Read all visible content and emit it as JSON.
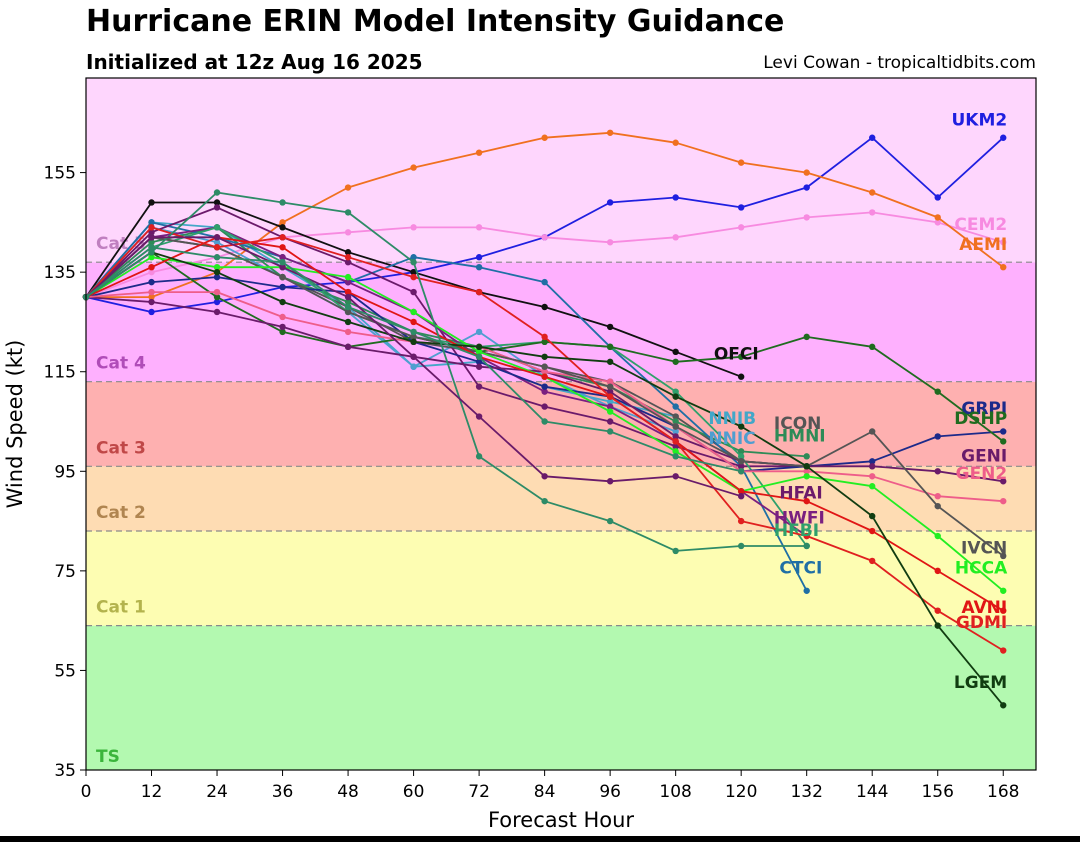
{
  "header": {
    "title": "Hurricane ERIN Model Intensity Guidance",
    "subtitle": "Initialized at 12z Aug 16 2025",
    "credit": "Levi Cowan - tropicaltidbits.com"
  },
  "chart_data": {
    "type": "line",
    "xlabel": "Forecast Hour",
    "ylabel": "Wind Speed (kt)",
    "xlim": [
      0,
      174
    ],
    "ylim": [
      35,
      174
    ],
    "xticks": [
      0,
      12,
      24,
      36,
      48,
      60,
      72,
      84,
      96,
      108,
      120,
      132,
      144,
      156,
      168
    ],
    "yticks": [
      35,
      55,
      75,
      95,
      115,
      135,
      155
    ],
    "bands": [
      {
        "label": "TS",
        "from": 35,
        "to": 64,
        "color": "#b3f9b0",
        "text_color": "#3bb53b"
      },
      {
        "label": "Cat 1",
        "from": 64,
        "to": 83,
        "color": "#fdfdb2",
        "text_color": "#b3b34d"
      },
      {
        "label": "Cat 2",
        "from": 83,
        "to": 96,
        "color": "#fedcb3",
        "text_color": "#b08550"
      },
      {
        "label": "Cat 3",
        "from": 96,
        "to": 113,
        "color": "#feb0b0",
        "text_color": "#c04848"
      },
      {
        "label": "Cat 4",
        "from": 113,
        "to": 137,
        "color": "#feb0fe",
        "text_color": "#b04cb8"
      },
      {
        "label": "Cat 5",
        "from": 137,
        "to": 174,
        "color": "#fed6fd",
        "text_color": "#c080c0"
      }
    ],
    "series": [
      {
        "name": "UKM2",
        "color": "#1f1fe0",
        "x": [
          0,
          12,
          24,
          36,
          48,
          60,
          72,
          84,
          96,
          108,
          120,
          132,
          144,
          156,
          168
        ],
        "values": [
          130,
          127,
          129,
          132,
          133,
          135,
          138,
          142,
          149,
          150,
          148,
          152,
          162,
          150,
          162
        ]
      },
      {
        "name": "CEM2",
        "color": "#f78ae0",
        "x": [
          0,
          12,
          24,
          36,
          48,
          60,
          72,
          84,
          96,
          108,
          120,
          132,
          144,
          156,
          168
        ],
        "values": [
          130,
          135,
          138,
          142,
          143,
          144,
          144,
          142,
          141,
          142,
          144,
          146,
          147,
          145,
          141
        ]
      },
      {
        "name": "AEMI",
        "color": "#f07020",
        "x": [
          0,
          12,
          24,
          36,
          48,
          60,
          72,
          84,
          96,
          108,
          120,
          132,
          144,
          156,
          168
        ],
        "values": [
          130,
          130,
          135,
          145,
          152,
          156,
          159,
          162,
          163,
          161,
          157,
          155,
          151,
          146,
          136
        ]
      },
      {
        "name": "OFCI",
        "color": "#111111",
        "x": [
          0,
          12,
          24,
          36,
          48,
          60,
          72,
          84,
          96,
          108,
          120
        ],
        "values": [
          130,
          149,
          149,
          144,
          139,
          135,
          131,
          128,
          124,
          119,
          114
        ]
      },
      {
        "name": "NNIB",
        "color": "#43a7c8",
        "x": [
          0,
          12,
          24,
          36,
          48,
          60,
          72,
          84,
          96,
          108
        ],
        "values": [
          130,
          145,
          144,
          136,
          128,
          116,
          117,
          112,
          109,
          106
        ]
      },
      {
        "name": "NNIC",
        "color": "#4f9ed0",
        "x": [
          0,
          12,
          24,
          36,
          48,
          60,
          72,
          84,
          96,
          108
        ],
        "values": [
          130,
          144,
          141,
          134,
          127,
          116,
          123,
          114,
          108,
          103
        ]
      },
      {
        "name": "ICON",
        "color": "#555555",
        "x": [
          0,
          12,
          24,
          36,
          48,
          60,
          72,
          84,
          96,
          108,
          120,
          132
        ],
        "values": [
          130,
          142,
          140,
          134,
          128,
          121,
          119,
          116,
          113,
          106,
          97,
          96
        ]
      },
      {
        "name": "HMNI",
        "color": "#2e8b57",
        "x": [
          0,
          12,
          24,
          36,
          48,
          60,
          72,
          84,
          96,
          108,
          120,
          132
        ],
        "values": [
          130,
          141,
          144,
          134,
          129,
          123,
          120,
          115,
          112,
          105,
          99,
          98
        ]
      },
      {
        "name": "CTCI",
        "color": "#1f6fa5",
        "x": [
          0,
          12,
          24,
          36,
          48,
          60,
          72,
          84,
          96,
          108,
          120,
          132
        ],
        "values": [
          130,
          145,
          142,
          138,
          133,
          138,
          136,
          133,
          120,
          108,
          96,
          71
        ]
      },
      {
        "name": "HFAI",
        "color": "#6b1a6b",
        "x": [
          0,
          12,
          24,
          36,
          48,
          60,
          72,
          84,
          96,
          108,
          120,
          132
        ],
        "values": [
          130,
          143,
          148,
          142,
          137,
          131,
          112,
          108,
          105,
          100,
          96,
          96
        ]
      },
      {
        "name": "HWFI",
        "color": "#7a1f80",
        "x": [
          0,
          12,
          24,
          36,
          48,
          60,
          72,
          84,
          96,
          108,
          120,
          132
        ],
        "values": [
          130,
          142,
          144,
          138,
          133,
          127,
          118,
          111,
          108,
          101,
          91,
          82
        ]
      },
      {
        "name": "HFBI",
        "color": "#2fa06b",
        "x": [
          0,
          12,
          24,
          36,
          48,
          60,
          72,
          84,
          96,
          108,
          120,
          132
        ],
        "values": [
          130,
          140,
          144,
          137,
          127,
          122,
          120,
          121,
          120,
          111,
          98,
          80
        ]
      },
      {
        "name": "GRPI",
        "color": "#1c2a8a",
        "x": [
          0,
          12,
          24,
          36,
          48,
          60,
          72,
          84,
          96,
          108,
          120,
          132,
          144,
          156,
          168
        ],
        "values": [
          130,
          133,
          134,
          132,
          131,
          121,
          117,
          112,
          110,
          104,
          95,
          96,
          97,
          102,
          103
        ]
      },
      {
        "name": "DSHP",
        "color": "#1f6b1f",
        "x": [
          0,
          12,
          24,
          36,
          48,
          60,
          72,
          84,
          96,
          108,
          120,
          132,
          144,
          156,
          168
        ],
        "values": [
          130,
          139,
          130,
          123,
          120,
          122,
          119,
          121,
          120,
          117,
          118,
          122,
          120,
          111,
          101
        ]
      },
      {
        "name": "GENI",
        "color": "#6a1b6a",
        "x": [
          0,
          12,
          24,
          36,
          48,
          60,
          72,
          84,
          96,
          108,
          120,
          132,
          144,
          156,
          168
        ],
        "values": [
          130,
          129,
          127,
          124,
          120,
          118,
          116,
          115,
          111,
          102,
          97,
          96,
          96,
          95,
          93
        ]
      },
      {
        "name": "GEN2",
        "color": "#ee5d8a",
        "x": [
          0,
          12,
          24,
          36,
          48,
          60,
          72,
          84,
          96,
          108,
          120,
          132,
          144,
          156,
          168
        ],
        "values": [
          130,
          131,
          131,
          126,
          123,
          121,
          120,
          115,
          113,
          104,
          95,
          95,
          94,
          90,
          89
        ]
      },
      {
        "name": "IVCN",
        "color": "#555555",
        "x": [
          0,
          12,
          24,
          36,
          48,
          60,
          72,
          84,
          96,
          108,
          120,
          132,
          144,
          156,
          168
        ],
        "values": [
          130,
          142,
          140,
          134,
          127,
          122,
          119,
          116,
          112,
          104,
          97,
          96,
          103,
          88,
          78
        ]
      },
      {
        "name": "HCCA",
        "color": "#22ee22",
        "x": [
          0,
          12,
          24,
          36,
          48,
          60,
          72,
          84,
          96,
          108,
          120,
          132,
          144,
          156,
          168
        ],
        "values": [
          130,
          138,
          136,
          136,
          134,
          127,
          119,
          114,
          107,
          99,
          91,
          94,
          92,
          82,
          71
        ]
      },
      {
        "name": "AVNI",
        "color": "#e01515",
        "x": [
          0,
          12,
          24,
          36,
          48,
          60,
          72,
          84,
          96,
          108,
          120,
          132,
          144,
          156,
          168
        ],
        "values": [
          130,
          136,
          142,
          140,
          131,
          125,
          118,
          114,
          110,
          101,
          91,
          89,
          83,
          75,
          67
        ]
      },
      {
        "name": "GDMI",
        "color": "#e02020",
        "x": [
          0,
          12,
          24,
          36,
          48,
          60,
          72,
          84,
          96,
          108,
          120,
          132,
          144,
          156,
          168
        ],
        "values": [
          130,
          144,
          140,
          142,
          138,
          134,
          131,
          122,
          110,
          101,
          85,
          82,
          77,
          67,
          59
        ]
      },
      {
        "name": "LGEM",
        "color": "#113d11",
        "x": [
          0,
          12,
          24,
          36,
          48,
          60,
          72,
          84,
          96,
          108,
          120,
          132,
          144,
          156,
          168
        ],
        "values": [
          130,
          139,
          135,
          129,
          125,
          121,
          120,
          118,
          117,
          110,
          104,
          96,
          86,
          64,
          48
        ]
      },
      {
        "name": "",
        "color": "#2e8b67",
        "x": [
          0,
          12,
          24,
          36,
          48,
          60,
          72,
          84,
          96,
          108,
          120,
          132
        ],
        "values": [
          130,
          139,
          151,
          149,
          147,
          137,
          98,
          89,
          85,
          79,
          80,
          80
        ]
      },
      {
        "name": "",
        "color": "#6a1b6a",
        "x": [
          0,
          12,
          24,
          36,
          48,
          60,
          72,
          84,
          96,
          108,
          120
        ],
        "values": [
          130,
          142,
          142,
          136,
          130,
          118,
          106,
          94,
          93,
          94,
          90
        ]
      },
      {
        "name": "",
        "color": "#2e8b67",
        "x": [
          0,
          12,
          24,
          36,
          48,
          60,
          72,
          84,
          96,
          108,
          120
        ],
        "values": [
          130,
          140,
          138,
          137,
          128,
          123,
          118,
          105,
          103,
          98,
          95
        ]
      }
    ],
    "labels": [
      {
        "text": "UKM2",
        "color": "#1f1fe0",
        "x": 168,
        "y": 164.5,
        "ha": "end"
      },
      {
        "text": "CEM2",
        "color": "#f78ae0",
        "x": 168,
        "y": 143.5,
        "ha": "end"
      },
      {
        "text": "AEMI",
        "color": "#f07020",
        "x": 168,
        "y": 139.5,
        "ha": "end"
      },
      {
        "text": "OFCI",
        "color": "#111111",
        "x": 115,
        "y": 117.5,
        "ha": "start"
      },
      {
        "text": "NNIB",
        "color": "#43a7c8",
        "x": 114,
        "y": 104.5,
        "ha": "start"
      },
      {
        "text": "NNIC",
        "color": "#4f9ed0",
        "x": 114,
        "y": 100.5,
        "ha": "start"
      },
      {
        "text": "ICON",
        "color": "#555555",
        "x": 126,
        "y": 103.5,
        "ha": "start"
      },
      {
        "text": "HMNI",
        "color": "#2e8b57",
        "x": 126,
        "y": 101,
        "ha": "start"
      },
      {
        "text": "GRPI",
        "color": "#1c2a8a",
        "x": 168,
        "y": 106.5,
        "ha": "end"
      },
      {
        "text": "DSHP",
        "color": "#1f6b1f",
        "x": 168,
        "y": 104.5,
        "ha": "end"
      },
      {
        "text": "GENI",
        "color": "#6a1b6a",
        "x": 168,
        "y": 97,
        "ha": "end"
      },
      {
        "text": "GEN2",
        "color": "#ee5d8a",
        "x": 168,
        "y": 93.5,
        "ha": "end"
      },
      {
        "text": "HFAI",
        "color": "#6b1a6b",
        "x": 127,
        "y": 89.5,
        "ha": "start"
      },
      {
        "text": "HWFI",
        "color": "#7a1f80",
        "x": 126,
        "y": 84.5,
        "ha": "start"
      },
      {
        "text": "HFBI",
        "color": "#2fa06b",
        "x": 126,
        "y": 82,
        "ha": "start"
      },
      {
        "text": "IVCN",
        "color": "#555555",
        "x": 168,
        "y": 78.5,
        "ha": "end"
      },
      {
        "text": "HCCA",
        "color": "#22ee22",
        "x": 168,
        "y": 74.5,
        "ha": "end"
      },
      {
        "text": "CTCI",
        "color": "#1f6fa5",
        "x": 127,
        "y": 74.5,
        "ha": "start"
      },
      {
        "text": "AVNI",
        "color": "#e01515",
        "x": 168,
        "y": 66.5,
        "ha": "end"
      },
      {
        "text": "GDMI",
        "color": "#e02020",
        "x": 168,
        "y": 63.5,
        "ha": "end"
      },
      {
        "text": "LGEM",
        "color": "#113d11",
        "x": 168,
        "y": 51.5,
        "ha": "end"
      }
    ]
  }
}
